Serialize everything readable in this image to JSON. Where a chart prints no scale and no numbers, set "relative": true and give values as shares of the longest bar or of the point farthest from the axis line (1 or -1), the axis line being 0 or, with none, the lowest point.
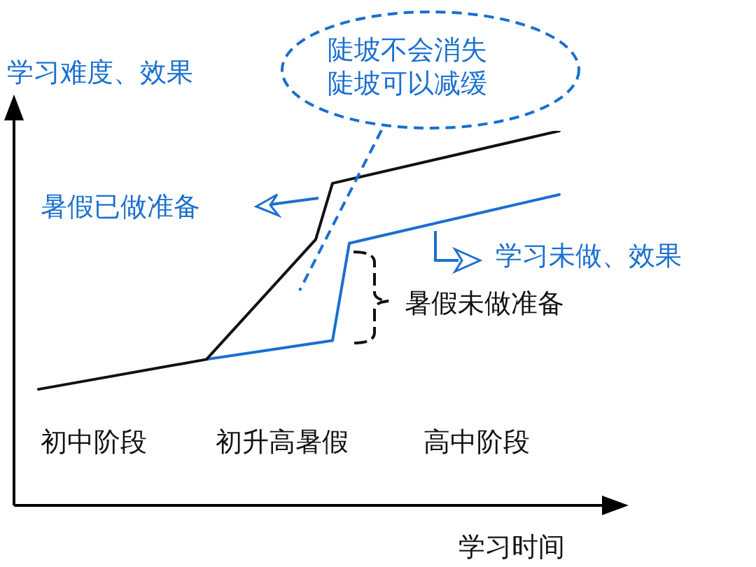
{
  "chart_data": {
    "type": "line",
    "relative": true,
    "xlabel": "学习时间",
    "ylabel": "学习难度、效果",
    "marker": "none",
    "legend": false,
    "categories": [
      null,
      null,
      null,
      null,
      null,
      null,
      null,
      null,
      null,
      null,
      null,
      null,
      null,
      null,
      null,
      null,
      null,
      null,
      null,
      null,
      null,
      null,
      null,
      null,
      null,
      null,
      null,
      null,
      null,
      null,
      null,
      null,
      null,
      null,
      null,
      null,
      null,
      null,
      null,
      null,
      null,
      null,
      null,
      null,
      null,
      null,
      null,
      null,
      null,
      null,
      null,
      null,
      null,
      null,
      null,
      null,
      null,
      null,
      null,
      null,
      null,
      null,
      null
    ],
    "series": [
      {
        "values": [
          0.31,
          null,
          null,
          null,
          null,
          null,
          null,
          null,
          null,
          null,
          null,
          null,
          null,
          null,
          null,
          null,
          null,
          null,
          null,
          null,
          0.39,
          null,
          null,
          null,
          null,
          null,
          null,
          null,
          null,
          null,
          null,
          null,
          null,
          0.71,
          null,
          0.86,
          null,
          null,
          null,
          null,
          null,
          null,
          null,
          null,
          null,
          null,
          null,
          null,
          null,
          null,
          null,
          null,
          null,
          null,
          null,
          null,
          null,
          null,
          null,
          null,
          null,
          null,
          1
        ],
        "color": "#111111"
      },
      {
        "values": [
          null,
          null,
          null,
          null,
          null,
          null,
          null,
          null,
          null,
          null,
          null,
          null,
          null,
          null,
          null,
          null,
          null,
          null,
          null,
          null,
          0.39,
          null,
          null,
          null,
          null,
          null,
          null,
          null,
          null,
          null,
          null,
          null,
          null,
          null,
          null,
          0.44,
          null,
          0.7,
          null,
          null,
          null,
          null,
          null,
          null,
          null,
          null,
          null,
          null,
          null,
          null,
          null,
          null,
          null,
          null,
          null,
          null,
          null,
          null,
          null,
          null,
          null,
          null,
          0.83
        ],
        "color": "#1a6fd0"
      }
    ],
    "annotations": [
      "陡坡不会消失",
      "陡坡可以减缓",
      "暑假已做准备",
      "学习未做、效果",
      "暑假未做准备",
      "初中阶段",
      "初升高暑假",
      "高中阶段"
    ]
  }
}
